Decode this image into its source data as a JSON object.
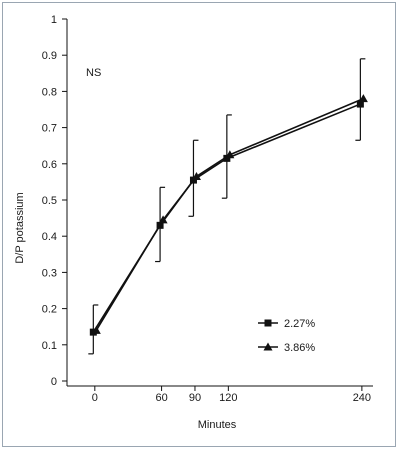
{
  "chart_data": {
    "type": "line",
    "annotation": "NS",
    "xlabel": "Minutes",
    "ylabel": "D/P potassium",
    "x_ticks": [
      0,
      60,
      90,
      120,
      240
    ],
    "y_ticks": [
      "0",
      "0.1",
      "0.2",
      "0.3",
      "0.4",
      "0.5",
      "0.6",
      "0.7",
      "0.8",
      "0.9",
      "1"
    ],
    "xlim": [
      -25,
      250
    ],
    "ylim": [
      0,
      1
    ],
    "legend_position": "lower-right",
    "grid": false,
    "colors": {
      "line": "#111111",
      "axis": "#111111",
      "frame": "#9aa6b2"
    },
    "series": [
      {
        "name": "2.27%",
        "marker": "square",
        "x": [
          0,
          60,
          90,
          120,
          240
        ],
        "y": [
          0.135,
          0.43,
          0.555,
          0.615,
          0.765
        ],
        "err_up": [
          0.075,
          0.105,
          0.11,
          0.12,
          0.125
        ],
        "err_down": [
          0.06,
          0.1,
          0.1,
          0.11,
          0.1
        ]
      },
      {
        "name": "3.86%",
        "marker": "triangle",
        "x": [
          0,
          60,
          90,
          120,
          240
        ],
        "y": [
          0.14,
          0.445,
          0.565,
          0.625,
          0.78
        ],
        "err_up": [
          0,
          0,
          0,
          0,
          0
        ],
        "err_down": [
          0,
          0,
          0,
          0,
          0
        ]
      }
    ]
  }
}
